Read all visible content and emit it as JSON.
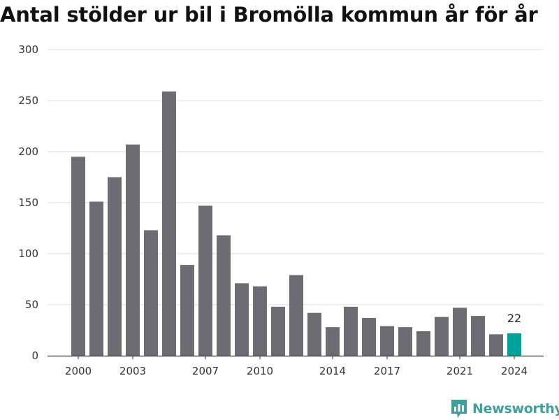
{
  "chart_data": {
    "type": "bar",
    "title": "Antal stölder ur bil i Bromölla kommun år för år",
    "xlabel": "",
    "ylabel": "",
    "categories": [
      "2000",
      "2001",
      "2002",
      "2003",
      "2004",
      "2005",
      "2006",
      "2007",
      "2008",
      "2009",
      "2010",
      "2011",
      "2012",
      "2013",
      "2014",
      "2015",
      "2016",
      "2017",
      "2018",
      "2019",
      "2020",
      "2021",
      "2022",
      "2023",
      "2024"
    ],
    "values": [
      195,
      151,
      175,
      207,
      123,
      259,
      89,
      147,
      118,
      71,
      68,
      48,
      79,
      42,
      28,
      48,
      37,
      29,
      28,
      24,
      38,
      47,
      39,
      21,
      22
    ],
    "x_tick_labels": [
      "2000",
      "2003",
      "2007",
      "2010",
      "2014",
      "2017",
      "2021",
      "2024"
    ],
    "y_ticks": [
      0,
      50,
      100,
      150,
      200,
      250,
      300
    ],
    "ylim": [
      0,
      300
    ],
    "grid": true,
    "highlight": {
      "category": "2024",
      "label": "22"
    },
    "colors": {
      "bar": "#6d6c72",
      "highlight": "#00a39a",
      "grid": "#dddddd"
    }
  },
  "brand": {
    "name": "Newsworthy",
    "icon": "newsworthy-logo-icon",
    "color": "#3f9f9a"
  }
}
